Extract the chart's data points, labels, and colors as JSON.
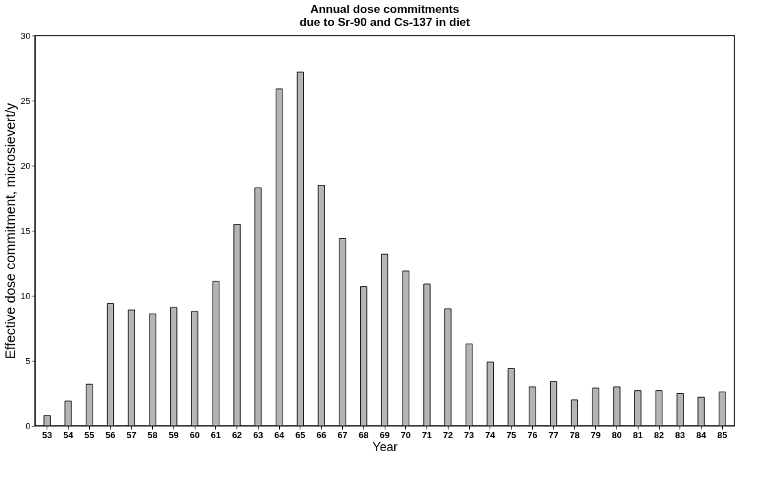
{
  "chart_data": {
    "type": "bar",
    "title": [
      "Annual dose commitments",
      "due to Sr-90 and Cs-137 in diet"
    ],
    "xlabel": "Year",
    "ylabel": "Effective dose commitment, microsievert/y",
    "categories": [
      "53",
      "54",
      "55",
      "56",
      "57",
      "58",
      "59",
      "60",
      "61",
      "62",
      "63",
      "64",
      "65",
      "66",
      "67",
      "68",
      "69",
      "70",
      "71",
      "72",
      "73",
      "74",
      "75",
      "76",
      "77",
      "78",
      "79",
      "80",
      "81",
      "82",
      "83",
      "84",
      "85"
    ],
    "values": [
      0.8,
      1.9,
      3.2,
      9.4,
      8.9,
      8.6,
      9.1,
      8.8,
      11.1,
      15.5,
      18.3,
      25.9,
      27.2,
      18.5,
      14.4,
      10.7,
      13.2,
      11.9,
      10.9,
      9.0,
      6.3,
      4.9,
      4.4,
      3.0,
      3.4,
      2.0,
      2.9,
      3.0,
      2.7,
      2.7,
      2.5,
      2.2,
      2.6
    ],
    "color": "#b4b4b4",
    "ylim": [
      0,
      30
    ],
    "yticks": [
      0,
      5,
      10,
      15,
      20,
      25,
      30
    ],
    "grid": false
  }
}
